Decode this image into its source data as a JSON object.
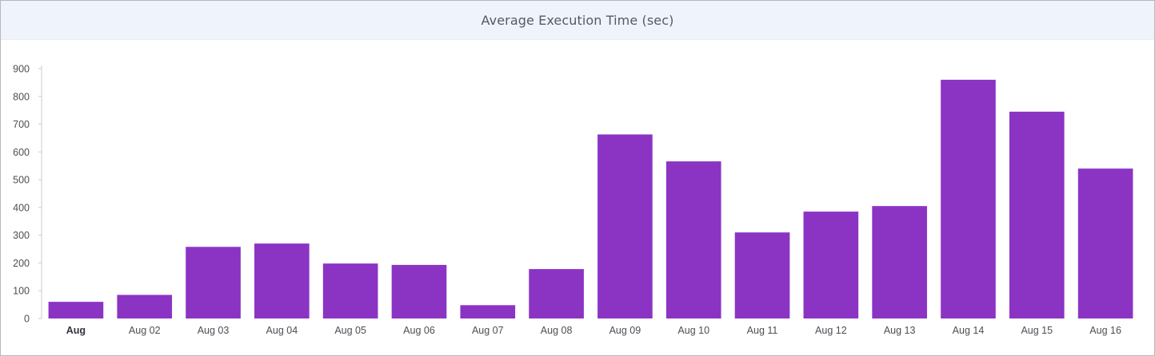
{
  "panel": {
    "title": "Average Execution Time (sec)"
  },
  "colors": {
    "bar": "#8b34c4",
    "header_bg": "#eff3fb",
    "axis": "#cccccc"
  },
  "chart_data": {
    "type": "bar",
    "title": "Average Execution Time (sec)",
    "xlabel": "",
    "ylabel": "",
    "categories": [
      "Aug",
      "Aug 02",
      "Aug 03",
      "Aug 04",
      "Aug 05",
      "Aug 06",
      "Aug 07",
      "Aug 08",
      "Aug 09",
      "Aug 10",
      "Aug 11",
      "Aug 12",
      "Aug 13",
      "Aug 14",
      "Aug 15",
      "Aug 16"
    ],
    "values": [
      60,
      85,
      258,
      270,
      198,
      193,
      48,
      178,
      663,
      566,
      310,
      385,
      405,
      860,
      745,
      540
    ],
    "ylim": [
      0,
      900
    ],
    "yticks": [
      0,
      100,
      200,
      300,
      400,
      500,
      600,
      700,
      800,
      900
    ],
    "grid": false,
    "legend": "none"
  }
}
